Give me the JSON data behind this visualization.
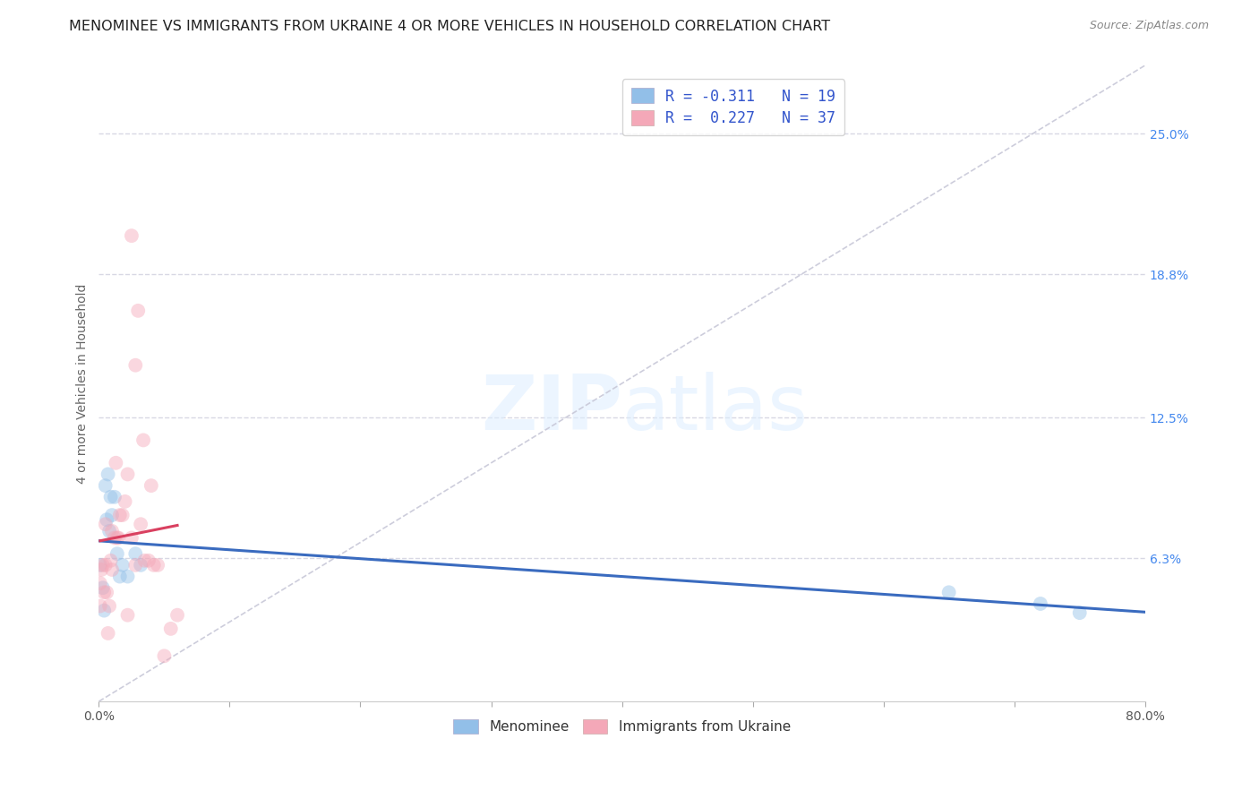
{
  "title": "MENOMINEE VS IMMIGRANTS FROM UKRAINE 4 OR MORE VEHICLES IN HOUSEHOLD CORRELATION CHART",
  "source": "Source: ZipAtlas.com",
  "ylabel": "4 or more Vehicles in Household",
  "x_min": 0.0,
  "x_max": 0.8,
  "y_min": 0.0,
  "y_max": 0.28,
  "right_yticks": [
    0.063,
    0.125,
    0.188,
    0.25
  ],
  "right_yticklabels": [
    "6.3%",
    "12.5%",
    "18.8%",
    "25.0%"
  ],
  "x_ticks": [
    0.0,
    0.1,
    0.2,
    0.3,
    0.4,
    0.5,
    0.6,
    0.7,
    0.8
  ],
  "x_ticklabels": [
    "0.0%",
    "",
    "",
    "",
    "",
    "",
    "",
    "",
    "80.0%"
  ],
  "menominee_x": [
    0.001,
    0.003,
    0.004,
    0.005,
    0.006,
    0.007,
    0.008,
    0.009,
    0.01,
    0.012,
    0.014,
    0.016,
    0.018,
    0.022,
    0.028,
    0.032,
    0.65,
    0.72,
    0.75
  ],
  "menominee_y": [
    0.06,
    0.05,
    0.04,
    0.095,
    0.08,
    0.1,
    0.075,
    0.09,
    0.082,
    0.09,
    0.065,
    0.055,
    0.06,
    0.055,
    0.065,
    0.06,
    0.048,
    0.043,
    0.039
  ],
  "ukraine_x": [
    0.001,
    0.001,
    0.002,
    0.003,
    0.004,
    0.005,
    0.005,
    0.006,
    0.007,
    0.008,
    0.009,
    0.01,
    0.01,
    0.012,
    0.013,
    0.014,
    0.015,
    0.016,
    0.018,
    0.02,
    0.022,
    0.022,
    0.025,
    0.025,
    0.028,
    0.028,
    0.03,
    0.032,
    0.034,
    0.035,
    0.038,
    0.04,
    0.042,
    0.045,
    0.05,
    0.055,
    0.06
  ],
  "ukraine_y": [
    0.042,
    0.052,
    0.058,
    0.06,
    0.048,
    0.078,
    0.06,
    0.048,
    0.03,
    0.042,
    0.062,
    0.058,
    0.075,
    0.072,
    0.105,
    0.072,
    0.072,
    0.082,
    0.082,
    0.088,
    0.1,
    0.038,
    0.205,
    0.072,
    0.148,
    0.06,
    0.172,
    0.078,
    0.115,
    0.062,
    0.062,
    0.095,
    0.06,
    0.06,
    0.02,
    0.032,
    0.038
  ],
  "blue_color": "#92bfe8",
  "pink_color": "#f4a8b8",
  "blue_line_color": "#3a6bbf",
  "pink_line_color": "#d94060",
  "diag_line_color": "#c8c8d8",
  "grid_color": "#d8d8e4",
  "watermark_zip": "ZIP",
  "watermark_atlas": "atlas",
  "marker_size": 130,
  "marker_alpha": 0.45,
  "title_fontsize": 11.5,
  "label_fontsize": 10,
  "tick_fontsize": 10,
  "legend_label_1": "R = -0.311   N = 19",
  "legend_label_2": "R =  0.227   N = 37",
  "bottom_legend_1": "Menominee",
  "bottom_legend_2": "Immigrants from Ukraine"
}
